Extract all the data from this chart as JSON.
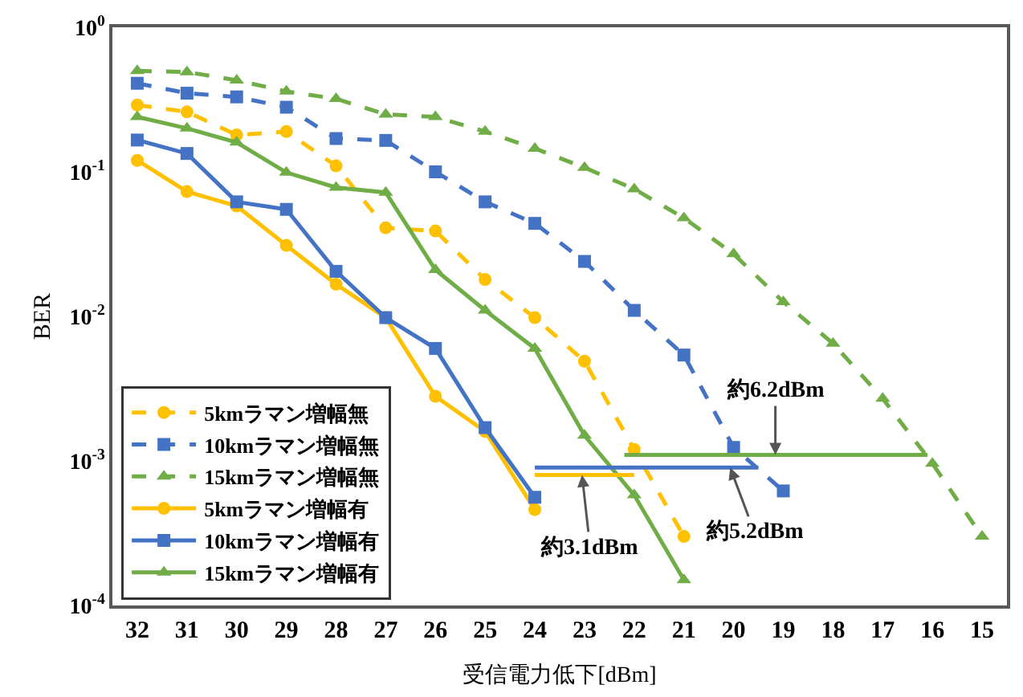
{
  "chart_data": {
    "type": "line",
    "xlabel": "受信電力低下[dBm]",
    "ylabel": "BER",
    "log": "y",
    "legend": "bottom left",
    "xlim": [
      32.5,
      14.5
    ],
    "xticks": [
      32,
      31,
      30,
      29,
      28,
      27,
      26,
      25,
      24,
      23,
      22,
      21,
      20,
      19,
      18,
      17,
      16,
      15
    ],
    "ylim": [
      0.0001,
      1
    ],
    "yticks": [
      {
        "value": 1,
        "label": "10$^{0}$"
      },
      {
        "value": 0.1,
        "label": "10$^{-1}$"
      },
      {
        "value": 0.01,
        "label": "10$^{-2}$"
      },
      {
        "value": 0.001,
        "label": "10$^{-3}$"
      },
      {
        "value": 0.0001,
        "label": "10$^{-4}$"
      }
    ],
    "series": [
      {
        "name": "5kmラマン増幅無",
        "color": "#ffc000",
        "line_style": "dashed",
        "marker": "circle",
        "x": [
          32,
          31,
          30,
          29,
          28,
          27,
          26,
          25,
          24,
          23,
          22,
          21
        ],
        "values": [
          0.29,
          0.26,
          0.18,
          0.19,
          0.11,
          0.041,
          0.039,
          0.018,
          0.0098,
          0.0049,
          0.0012,
          0.0003
        ]
      },
      {
        "name": "10kmラマン増幅無",
        "color": "#4472c4",
        "line_style": "dashed",
        "marker": "square",
        "x": [
          32,
          31,
          30,
          29,
          28,
          27,
          26,
          25,
          24,
          23,
          22,
          21,
          20,
          19
        ],
        "values": [
          0.41,
          0.35,
          0.33,
          0.28,
          0.17,
          0.165,
          0.1,
          0.062,
          0.044,
          0.024,
          0.011,
          0.0054,
          0.00124,
          0.00062
        ]
      },
      {
        "name": "15kmラマン増幅無",
        "color": "#70ad47",
        "line_style": "dashed",
        "marker": "triangle",
        "x": [
          32,
          31,
          30,
          29,
          28,
          27,
          26,
          25,
          24,
          23,
          22,
          21,
          20,
          19,
          18,
          17,
          16,
          15
        ],
        "values": [
          0.5,
          0.49,
          0.43,
          0.36,
          0.32,
          0.25,
          0.24,
          0.19,
          0.145,
          0.107,
          0.076,
          0.048,
          0.027,
          0.0126,
          0.0065,
          0.0027,
          0.00096,
          0.0003
        ]
      },
      {
        "name": "5kmラマン増幅有",
        "color": "#ffc000",
        "line_style": "solid",
        "marker": "circle",
        "x": [
          32,
          31,
          30,
          29,
          28,
          27,
          26,
          25,
          24
        ],
        "values": [
          0.12,
          0.073,
          0.058,
          0.031,
          0.0167,
          0.0098,
          0.0028,
          0.0016,
          0.00046
        ]
      },
      {
        "name": "10kmラマン増幅有",
        "color": "#4472c4",
        "line_style": "solid",
        "marker": "square",
        "x": [
          32,
          31,
          30,
          29,
          28,
          27,
          26,
          25,
          24
        ],
        "values": [
          0.166,
          0.134,
          0.062,
          0.055,
          0.0205,
          0.0098,
          0.006,
          0.0017,
          0.00056
        ]
      },
      {
        "name": "15kmラマン増幅有",
        "color": "#70ad47",
        "line_style": "solid",
        "marker": "triangle",
        "x": [
          32,
          31,
          30,
          29,
          28,
          27,
          26,
          25,
          24,
          23,
          22,
          21
        ],
        "values": [
          0.24,
          0.2,
          0.16,
          0.099,
          0.078,
          0.072,
          0.021,
          0.011,
          0.006,
          0.0015,
          0.00058,
          0.00015
        ]
      },
      {
        "color": "#ffc000",
        "line_style": "solid",
        "marker": "none",
        "x": [
          24,
          22
        ],
        "values": [
          0.0008,
          0.0008
        ]
      },
      {
        "color": "#4472c4",
        "line_style": "solid",
        "marker": "none",
        "x": [
          24,
          19.5
        ],
        "values": [
          0.0009,
          0.0009
        ]
      },
      {
        "color": "#70ad47",
        "line_style": "solid",
        "marker": "none",
        "x": [
          22.2,
          16.1
        ],
        "values": [
          0.0011,
          0.0011
        ]
      }
    ],
    "annotations": [
      {
        "text": "約3.1dBm",
        "x": 23.05,
        "y": 0.0008
      },
      {
        "text": "約5.2dBm",
        "x": 20.07,
        "y": 0.0009
      },
      {
        "text": "約6.2dBm",
        "x": 19.16,
        "y": 0.0011
      }
    ]
  }
}
